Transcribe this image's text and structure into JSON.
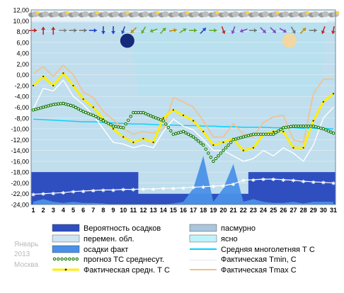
{
  "page": {
    "month": "Январь",
    "year": "2013",
    "city": "Москва"
  },
  "colors": {
    "plot_bg": "#b8e0ee",
    "cloudy_band": "#a9c6dc",
    "precip_prob": "#2f4fc0",
    "precip_fact": "#4a90e8",
    "avg_norm": "#00d0ff",
    "tmin": "#ffffff",
    "tmax": "#f4c08a",
    "tavg": "#ffee00",
    "forecast": "#117700",
    "snow_line": "#ffffff"
  },
  "chart_data": {
    "type": "line",
    "title": "",
    "xlabel": "",
    "ylabel": "",
    "ylim": [
      -24,
      12
    ],
    "x": [
      1,
      2,
      3,
      4,
      5,
      6,
      7,
      8,
      9,
      10,
      11,
      12,
      13,
      14,
      15,
      16,
      17,
      18,
      19,
      20,
      21,
      22,
      23,
      24,
      25,
      26,
      27,
      28,
      29,
      30,
      31
    ],
    "x_tick_labels": [
      "1",
      "2",
      "3",
      "4",
      "5",
      "6",
      "7",
      "8",
      "9",
      "10",
      "11",
      "12",
      "13",
      "14",
      "15",
      "16",
      "17",
      "18",
      "19",
      "20",
      "21",
      "22",
      "23",
      "24",
      "25",
      "26",
      "27",
      "28",
      "29",
      "30",
      "31"
    ],
    "y_tick_labels": [
      "12,00",
      "10,00",
      "8,00",
      "6,00",
      "4,00",
      "2,00",
      "0,00",
      "-2,00",
      "-4,00",
      "-6,00",
      "-8,00",
      "-10,00",
      "-12,00",
      "-14,00",
      "-16,00",
      "-18,00",
      "-20,00",
      "-22,00",
      "-24,00"
    ],
    "y_ticks": [
      12,
      10,
      8,
      6,
      4,
      2,
      0,
      -2,
      -4,
      -6,
      -8,
      -10,
      -12,
      -14,
      -16,
      -18,
      -20,
      -22,
      -24
    ],
    "series": [
      {
        "name": "Фактическая Tmax C",
        "values": [
          0.2,
          1.5,
          -0.3,
          1.8,
          0,
          -3.2,
          -4.2,
          -6.8,
          -8.3,
          -10,
          -11,
          -10.5,
          -10.8,
          -10,
          -4.2,
          -5,
          -6,
          -8.5,
          -11.5,
          -11.5,
          -9,
          -11,
          -11.5,
          -8.8,
          -7.8,
          -7.5,
          -12,
          -12.5,
          -3.5,
          -0.8,
          -0.8
        ]
      },
      {
        "name": "Фактическая средн. Т С",
        "values": [
          -2,
          -0.3,
          -2,
          0.3,
          -2,
          -4.5,
          -6,
          -8.2,
          -10,
          -11.5,
          -12.5,
          -11.8,
          -12.5,
          -8,
          -6.5,
          -7.5,
          -8.5,
          -10.5,
          -13,
          -12.5,
          -11.8,
          -14,
          -13.5,
          -11,
          -10.5,
          -10.5,
          -13.5,
          -13.5,
          -8.5,
          -5,
          -3.5
        ]
      },
      {
        "name": "Фактическая Tmin, C",
        "values": [
          -6.3,
          -2.5,
          -3,
          -1,
          -4,
          -5.5,
          -7.5,
          -10,
          -12.5,
          -12.8,
          -13.5,
          -13,
          -13.5,
          -10.5,
          -8.2,
          -9.5,
          -10.2,
          -12,
          -14,
          -14,
          -15,
          -16,
          -15.5,
          -14,
          -15,
          -13.5,
          -14.5,
          -16,
          -13,
          -8,
          -6
        ]
      },
      {
        "name": "Средняя многолетняя Т С",
        "values": [
          -8.2,
          -8.3,
          -8.4,
          -8.5,
          -8.6,
          -8.7,
          -8.7,
          -8.8,
          -8.9,
          -9,
          -9.1,
          -9.1,
          -9.2,
          -9.3,
          -9.3,
          -9.4,
          -9.4,
          -9.5,
          -9.5,
          -9.6,
          -9.6,
          -9.7,
          -9.7,
          -9.7,
          -9.8,
          -9.8,
          -9.8,
          -9.9,
          -9.9,
          -9.9,
          -10
        ]
      },
      {
        "name": "прогноз ТС среднесут.",
        "values": [
          -6.5,
          -6,
          -5.5,
          -5.3,
          -5.8,
          -6.8,
          -7.5,
          -8.5,
          -9.5,
          -9.8,
          -7,
          -7,
          -7.8,
          -8.5,
          -11,
          -10.5,
          -11.5,
          -13,
          -16,
          -14,
          -12,
          -11.5,
          -11,
          -11,
          -11,
          -9.8,
          -9.5,
          -9.5,
          -9.5,
          -10,
          -10.8
        ]
      },
      {
        "name": "Вероятность осадков",
        "values": [
          6,
          6,
          6,
          6,
          6,
          6,
          6,
          6,
          6,
          6,
          6,
          2,
          2,
          2,
          2,
          2,
          2,
          2,
          2,
          2,
          2,
          2,
          6,
          6,
          6,
          6,
          6,
          6,
          6,
          6,
          6
        ]
      },
      {
        "name": "осадки факт",
        "values": [
          0.5,
          1,
          0.5,
          0.3,
          0.5,
          0.3,
          0.3,
          0.2,
          0,
          0,
          0,
          0,
          0,
          0,
          0.2,
          0.5,
          3,
          9,
          0.5,
          3,
          7.5,
          0.5,
          1,
          0.5,
          0.3,
          0.3,
          0.5,
          0.2,
          0.5,
          0.5,
          0.5
        ]
      }
    ],
    "snow_depth_series_values": [
      -22.1,
      -22,
      -21.9,
      -21.8,
      -21.6,
      -21.5,
      -21.4,
      -21.3,
      -21.3,
      -21.2,
      -21.2,
      -21.1,
      -21.1,
      -21,
      -21,
      -20.9,
      -20.8,
      -20.7,
      -20.6,
      -20.5,
      -20.2,
      -19.5,
      -19.4,
      -19.3,
      -19.3,
      -19.4,
      -19.5,
      -19.7,
      -19.8,
      -19.9,
      -20
    ],
    "legend": {
      "placement": "bottom",
      "items": [
        {
          "label": "Вероятность осадков",
          "kind": "block",
          "color": "#2f4fc0"
        },
        {
          "label": "пасмурно",
          "kind": "block",
          "color": "#a9c6dc"
        },
        {
          "label": "перемен. обл.",
          "kind": "block",
          "color": "#cfe4f3"
        },
        {
          "label": "ясно",
          "kind": "block",
          "color": "#bff3fb"
        },
        {
          "label": "осадки факт",
          "kind": "block",
          "color": "#4a90e8"
        },
        {
          "label": "Средняя многолетняя Т С",
          "kind": "line",
          "color": "#00d0ff"
        },
        {
          "label": "прогноз ТС среднесут.",
          "kind": "dotted",
          "color": "#117700"
        },
        {
          "label": "Фактическая Tmin, C",
          "kind": "line",
          "color": "#ffffff"
        },
        {
          "label": "Фактическая средн. Т С",
          "kind": "marker-line",
          "color": "#ffee00"
        },
        {
          "label": "Фактическая Tmax C",
          "kind": "line",
          "color": "#f4c08a"
        }
      ]
    },
    "grid": true
  }
}
